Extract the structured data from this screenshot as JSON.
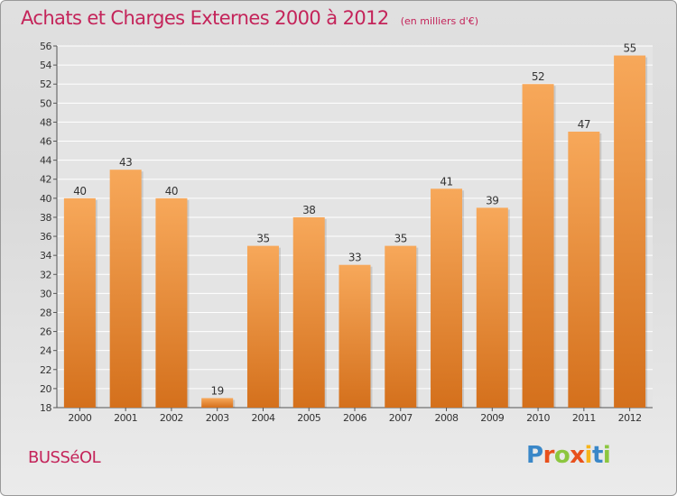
{
  "title": "Achats et Charges Externes 2000 à 2012",
  "unit_label": "(en milliers d'€)",
  "commune": "BUSSéOL",
  "logo": {
    "text": "Proxiti",
    "letter_colors": [
      "#3a87c8",
      "#e8501c",
      "#8cc63f",
      "#e8501c",
      "#f7b51a",
      "#3a87c8",
      "#8cc63f"
    ]
  },
  "colors": {
    "title": "#c4245a",
    "bar_light": "#f7a85a",
    "bar_dark": "#d4701c",
    "grid": "#ffffff",
    "axis": "#555555",
    "label": "#333333"
  },
  "chart_data": {
    "type": "bar",
    "title": "Achats et Charges Externes 2000 à 2012",
    "categories": [
      "2000",
      "2001",
      "2002",
      "2003",
      "2004",
      "2005",
      "2006",
      "2007",
      "2008",
      "2009",
      "2010",
      "2011",
      "2012"
    ],
    "values": [
      40,
      43,
      40,
      19,
      35,
      38,
      33,
      35,
      41,
      39,
      52,
      47,
      55
    ],
    "ylim": [
      18,
      56
    ],
    "yticks": [
      18,
      20,
      22,
      24,
      26,
      28,
      30,
      32,
      34,
      36,
      38,
      40,
      42,
      44,
      46,
      48,
      50,
      52,
      54,
      56
    ],
    "grid": true,
    "data_labels": true
  }
}
